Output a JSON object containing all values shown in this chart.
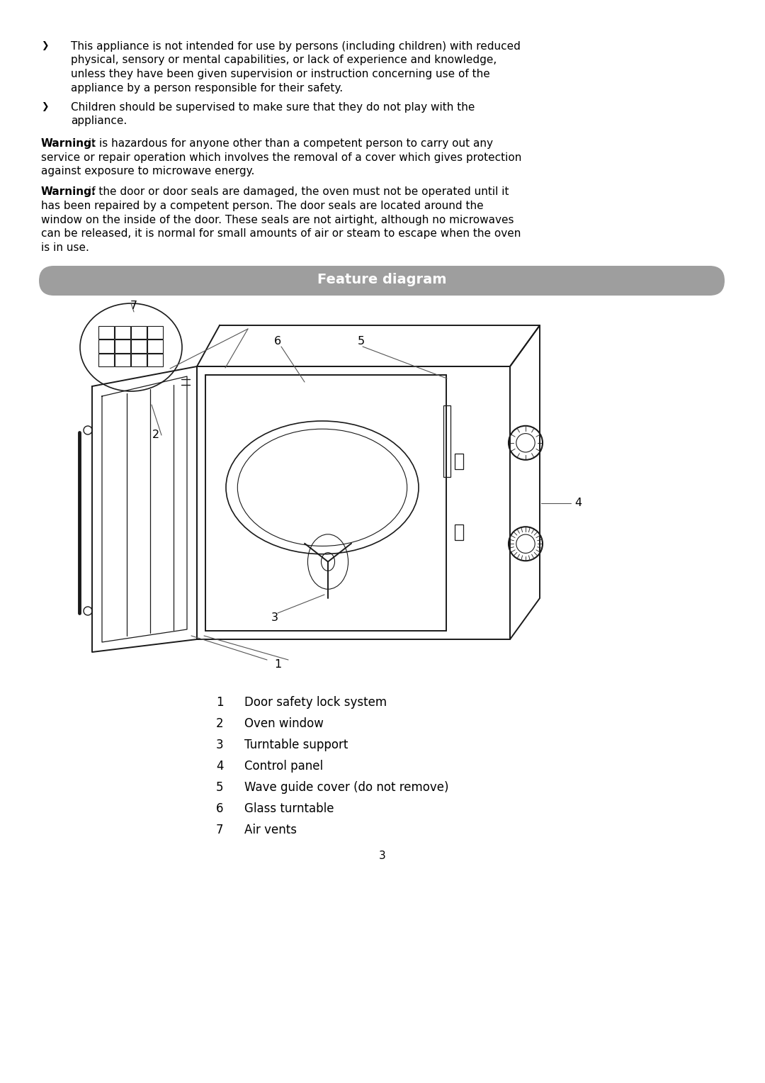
{
  "background_color": "#ffffff",
  "page_width": 10.8,
  "page_height": 15.28,
  "bullet_text_1_line1": "This appliance is not intended for use by persons (including children) with reduced",
  "bullet_text_1_line2": "physical, sensory or mental capabilities, or lack of experience and knowledge,",
  "bullet_text_1_line3": "unless they have been given supervision or instruction concerning use of the",
  "bullet_text_1_line4": "appliance by a person responsible for their safety.",
  "bullet_text_2_line1": "Children should be supervised to make sure that they do not play with the",
  "bullet_text_2_line2": "appliance.",
  "warning_1_bold": "Warning:",
  "warning_1_lines": [
    " it is hazardous for anyone other than a competent person to carry out any",
    "service or repair operation which involves the removal of a cover which gives protection",
    "against exposure to microwave energy."
  ],
  "warning_2_bold": "Warning:",
  "warning_2_lines": [
    " if the door or door seals are damaged, the oven must not be operated until it",
    "has been repaired by a competent person. The door seals are located around the",
    "window on the inside of the door. These seals are not airtight, although no microwaves",
    "can be released, it is normal for small amounts of air or steam to escape when the oven",
    "is in use."
  ],
  "feature_diagram_title": "Feature diagram",
  "feature_banner_color": "#9e9e9e",
  "feature_banner_text_color": "#ffffff",
  "parts": [
    {
      "num": "1",
      "desc": "Door safety lock system"
    },
    {
      "num": "2",
      "desc": "Oven window"
    },
    {
      "num": "3",
      "desc": "Turntable support"
    },
    {
      "num": "4",
      "desc": "Control panel"
    },
    {
      "num": "5",
      "desc": "Wave guide cover (do not remove)"
    },
    {
      "num": "6",
      "desc": "Glass turntable"
    },
    {
      "num": "7",
      "desc": "Air vents"
    }
  ],
  "page_number": "3"
}
